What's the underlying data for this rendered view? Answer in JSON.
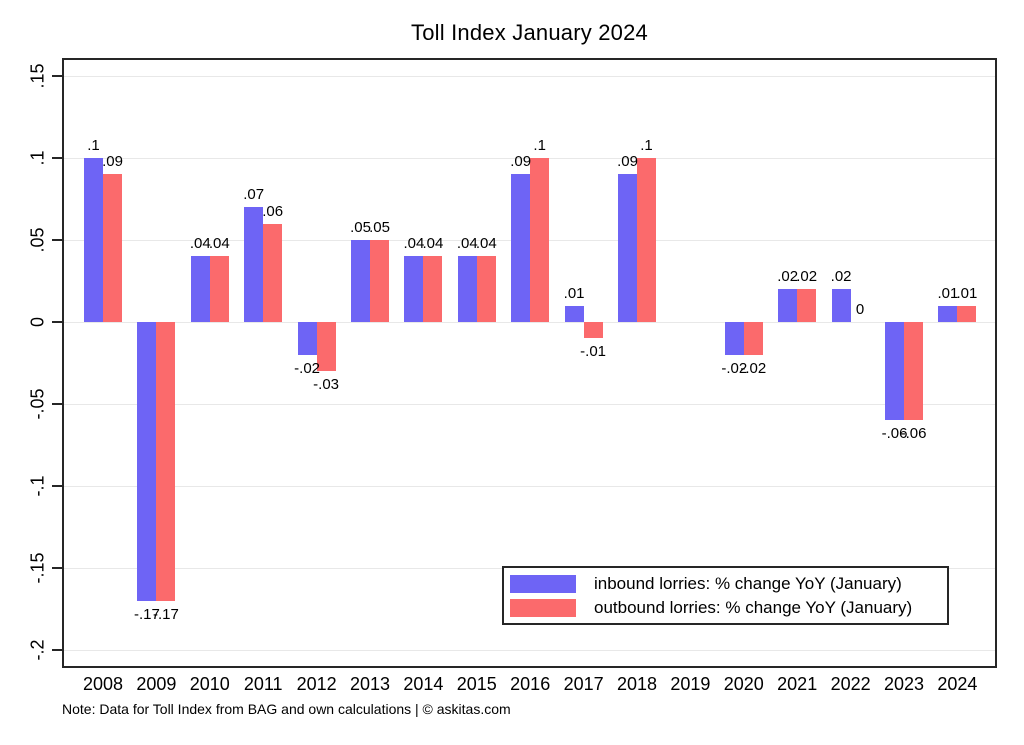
{
  "title": "Toll Index January 2024",
  "note": "Note: Data for Toll Index from BAG and own calculations | © askitas.com",
  "colors": {
    "inbound": "#6e64f5",
    "outbound": "#fb6a6c",
    "frame": "#262626",
    "gridline": "#e8e8e8",
    "background": "#ffffff"
  },
  "legend": {
    "items": [
      {
        "label": "inbound lorries: % change YoY (January)",
        "color": "#6e64f5"
      },
      {
        "label": "outbound lorries: % change YoY (January)",
        "color": "#fb6a6c"
      }
    ]
  },
  "chart_data": {
    "type": "bar",
    "title": "Toll Index January 2024",
    "categories": [
      "2008",
      "2009",
      "2010",
      "2011",
      "2012",
      "2013",
      "2014",
      "2015",
      "2016",
      "2017",
      "2018",
      "2019",
      "2020",
      "2021",
      "2022",
      "2023",
      "2024"
    ],
    "series": [
      {
        "name": "inbound lorries: % change YoY (January)",
        "color": "#6e64f5",
        "values": [
          0.1,
          -0.17,
          0.04,
          0.07,
          -0.02,
          0.05,
          0.04,
          0.04,
          0.09,
          0.01,
          0.09,
          null,
          -0.02,
          0.02,
          0.02,
          -0.06,
          0.01
        ],
        "labels": [
          ".1",
          "-.17",
          ".04",
          ".07",
          "-.02",
          ".05",
          ".04",
          ".04",
          ".09",
          ".01",
          ".09",
          "",
          "-.02",
          ".02",
          ".02",
          "-.06",
          ".01"
        ]
      },
      {
        "name": "outbound lorries: % change YoY (January)",
        "color": "#fb6a6c",
        "values": [
          0.09,
          -0.17,
          0.04,
          0.06,
          -0.03,
          0.05,
          0.04,
          0.04,
          0.1,
          -0.01,
          0.1,
          null,
          -0.02,
          0.02,
          0,
          -0.06,
          0.01
        ],
        "labels": [
          ".09",
          "-.17",
          ".04",
          ".06",
          "-.03",
          ".05",
          ".04",
          ".04",
          ".1",
          "-.01",
          ".1",
          "",
          "-.02",
          ".02",
          "0",
          "-.06",
          ".01"
        ]
      }
    ],
    "xlabel": "",
    "ylabel": "",
    "ylim": [
      -0.2,
      0.15
    ],
    "yticks": [
      {
        "value": 0.15,
        "label": ".15"
      },
      {
        "value": 0.1,
        "label": ".1"
      },
      {
        "value": 0.05,
        "label": ".05"
      },
      {
        "value": 0,
        "label": "0"
      },
      {
        "value": -0.05,
        "label": "-.05"
      },
      {
        "value": -0.1,
        "label": "-.1"
      },
      {
        "value": -0.15,
        "label": "-.15"
      },
      {
        "value": -0.2,
        "label": "-.2"
      }
    ],
    "grid": true,
    "legend_position": "bottom-right-inside"
  }
}
